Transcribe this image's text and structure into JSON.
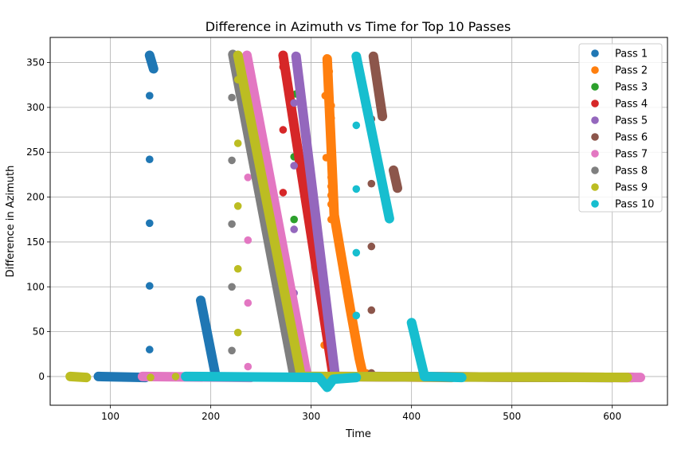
{
  "chart_data": {
    "type": "scatter",
    "title": "Difference in Azimuth vs Time for Top 10 Passes",
    "xlabel": "Time",
    "ylabel": "Difference in Azimuth",
    "xlim": [
      40,
      655
    ],
    "ylim": [
      -32,
      378
    ],
    "xticks": [
      100,
      200,
      300,
      400,
      500,
      600
    ],
    "yticks": [
      0,
      50,
      100,
      150,
      200,
      250,
      300,
      350
    ],
    "grid": true,
    "legend_position": "top-right",
    "series": [
      {
        "name": "Pass 1",
        "color": "#1f77b4",
        "segments": [
          [
            [
              88,
              0
            ],
            [
              135,
              -1
            ]
          ],
          [
            [
              190,
              85
            ],
            [
              205,
              0
            ]
          ],
          [
            [
              139,
              358
            ],
            [
              143,
              343
            ]
          ]
        ],
        "points": [
          [
            139,
            313
          ],
          [
            139,
            242
          ],
          [
            139,
            171
          ],
          [
            139,
            101
          ],
          [
            139,
            30
          ],
          [
            180,
            0
          ],
          [
            240,
            0
          ],
          [
            300,
            0
          ],
          [
            340,
            -1
          ],
          [
            400,
            0
          ],
          [
            460,
            0
          ],
          [
            520,
            -1
          ],
          [
            580,
            0
          ],
          [
            610,
            -1
          ]
        ]
      },
      {
        "name": "Pass 2",
        "color": "#ff7f0e",
        "segments": [
          [
            [
              316,
              354
            ],
            [
              323,
              180
            ],
            [
              339,
              75
            ],
            [
              348,
              20
            ],
            [
              352,
              0
            ]
          ],
          [
            [
              352,
              0
            ],
            [
              440,
              -1
            ]
          ]
        ],
        "points": [
          [
            318,
            340
          ],
          [
            318,
            320
          ],
          [
            320,
            302
          ],
          [
            320,
            288
          ],
          [
            320,
            276
          ],
          [
            320,
            264
          ],
          [
            320,
            252
          ],
          [
            320,
            242
          ],
          [
            320,
            232
          ],
          [
            320,
            222
          ],
          [
            320,
            212
          ],
          [
            320,
            202
          ],
          [
            320,
            192
          ],
          [
            314,
            313
          ],
          [
            315,
            244
          ],
          [
            320,
            175
          ],
          [
            313,
            35
          ],
          [
            355,
            4
          ],
          [
            450,
            0
          ],
          [
            500,
            0
          ],
          [
            560,
            0
          ],
          [
            600,
            -1
          ]
        ]
      },
      {
        "name": "Pass 3",
        "color": "#2ca02c",
        "segments": [],
        "points": [
          [
            283,
            245
          ],
          [
            283,
            175
          ],
          [
            285,
            315
          ]
        ]
      },
      {
        "name": "Pass 4",
        "color": "#d62728",
        "segments": [
          [
            [
              272,
              358
            ],
            [
              322,
              0
            ]
          ],
          [
            [
              322,
              0
            ],
            [
              620,
              -1
            ]
          ]
        ],
        "points": [
          [
            272,
            345
          ],
          [
            272,
            275
          ],
          [
            272,
            205
          ],
          [
            272,
            134
          ],
          [
            272,
            63
          ],
          [
            330,
            0
          ],
          [
            400,
            -1
          ],
          [
            470,
            0
          ],
          [
            550,
            0
          ]
        ]
      },
      {
        "name": "Pass 5",
        "color": "#9467bd",
        "segments": [
          [
            [
              285,
              357
            ],
            [
              324,
              0
            ]
          ],
          [
            [
              324,
              0
            ],
            [
              615,
              -1
            ]
          ]
        ],
        "points": [
          [
            283,
            305
          ],
          [
            283,
            235
          ],
          [
            283,
            164
          ],
          [
            283,
            93
          ],
          [
            330,
            -1
          ],
          [
            400,
            0
          ],
          [
            480,
            -1
          ],
          [
            560,
            0
          ]
        ]
      },
      {
        "name": "Pass 6",
        "color": "#8c564b",
        "segments": [
          [
            [
              362,
              357
            ],
            [
              371,
              290
            ]
          ],
          [
            [
              382,
              230
            ],
            [
              386,
              210
            ]
          ],
          [
            [
              360,
              0
            ],
            [
              600,
              -1
            ]
          ]
        ],
        "points": [
          [
            360,
            287
          ],
          [
            360,
            215
          ],
          [
            360,
            145
          ],
          [
            360,
            74
          ],
          [
            360,
            4
          ],
          [
            420,
            0
          ],
          [
            500,
            -1
          ],
          [
            580,
            0
          ]
        ]
      },
      {
        "name": "Pass 7",
        "color": "#e377c2",
        "segments": [
          [
            [
              236,
              358
            ],
            [
              296,
              0
            ]
          ],
          [
            [
              132,
              0
            ],
            [
              240,
              -1
            ]
          ],
          [
            [
              296,
              0
            ],
            [
              628,
              -1
            ]
          ]
        ],
        "points": [
          [
            237,
            292
          ],
          [
            237,
            222
          ],
          [
            237,
            152
          ],
          [
            237,
            82
          ],
          [
            237,
            11
          ],
          [
            133,
            1
          ],
          [
            620,
            -1
          ],
          [
            628,
            -1
          ]
        ]
      },
      {
        "name": "Pass 8",
        "color": "#7f7f7f",
        "segments": [
          [
            [
              222,
              359
            ],
            [
              283,
              0
            ]
          ],
          [
            [
              283,
              0
            ],
            [
              600,
              -1
            ]
          ]
        ],
        "points": [
          [
            221,
            311
          ],
          [
            221,
            241
          ],
          [
            221,
            170
          ],
          [
            221,
            100
          ],
          [
            221,
            29
          ],
          [
            240,
            0
          ],
          [
            350,
            0
          ]
        ]
      },
      {
        "name": "Pass 9",
        "color": "#bcbd22",
        "segments": [
          [
            [
              227,
              358
            ],
            [
              290,
              0
            ]
          ],
          [
            [
              60,
              0
            ],
            [
              76,
              -1
            ]
          ],
          [
            [
              290,
              0
            ],
            [
              615,
              -1
            ]
          ]
        ],
        "points": [
          [
            227,
            331
          ],
          [
            227,
            260
          ],
          [
            227,
            190
          ],
          [
            227,
            120
          ],
          [
            227,
            49
          ],
          [
            140,
            -1
          ],
          [
            165,
            0
          ],
          [
            200,
            -1
          ],
          [
            320,
            0
          ],
          [
            360,
            -1
          ],
          [
            420,
            0
          ],
          [
            480,
            0
          ],
          [
            540,
            -1
          ],
          [
            600,
            0
          ]
        ]
      },
      {
        "name": "Pass 10",
        "color": "#17becf",
        "segments": [
          [
            [
              345,
              357
            ],
            [
              378,
              176
            ]
          ],
          [
            [
              400,
              60
            ],
            [
              413,
              0
            ]
          ],
          [
            [
              413,
              0
            ],
            [
              450,
              -1
            ]
          ],
          [
            [
              175,
              0
            ],
            [
              308,
              -1
            ],
            [
              316,
              -12
            ],
            [
              322,
              -3
            ],
            [
              345,
              -1
            ]
          ]
        ],
        "points": [
          [
            345,
            280
          ],
          [
            345,
            209
          ],
          [
            345,
            138
          ],
          [
            345,
            68
          ],
          [
            440,
            -1
          ]
        ]
      }
    ]
  }
}
